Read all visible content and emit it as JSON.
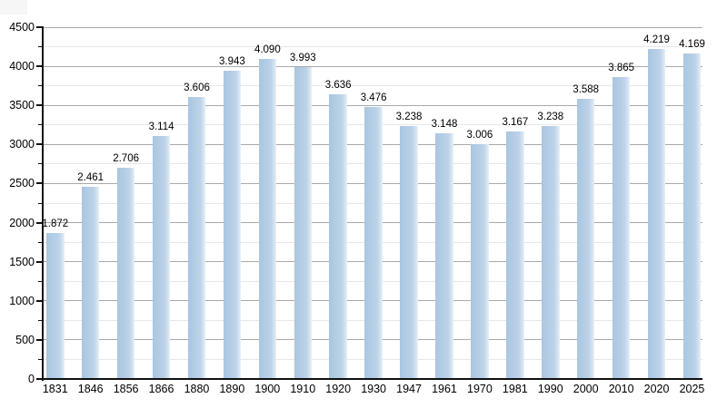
{
  "chart_data": {
    "type": "bar",
    "title": "",
    "xlabel": "",
    "ylabel": "",
    "categories": [
      "1831",
      "1846",
      "1856",
      "1866",
      "1880",
      "1890",
      "1900",
      "1910",
      "1920",
      "1930",
      "1947",
      "1961",
      "1970",
      "1981",
      "1990",
      "2000",
      "2010",
      "2020",
      "2025"
    ],
    "values": [
      1872,
      2461,
      2706,
      3114,
      3606,
      3943,
      4090,
      3993,
      3636,
      3476,
      3238,
      3148,
      3006,
      3167,
      3238,
      3588,
      3865,
      4219,
      4169
    ],
    "value_labels": [
      "1.872",
      "2.461",
      "2.706",
      "3.114",
      "3.606",
      "3.943",
      "4.090",
      "3.993",
      "3.636",
      "3.476",
      "3.238",
      "3.148",
      "3.006",
      "3.167",
      "3.238",
      "3.588",
      "3.865",
      "4.219",
      "4.169"
    ],
    "ylim": [
      0,
      4500
    ],
    "y_tick_labels": [
      "0",
      "500",
      "1000",
      "1500",
      "2000",
      "2500",
      "3000",
      "3500",
      "4000",
      "4500"
    ],
    "y_major_step": 500,
    "y_minor_step": 250,
    "grid": "horizontal major+minor",
    "legend": null,
    "colors": {
      "bar_fill": "#b4cee5",
      "bar_fill_fade": "#e9f1f8",
      "grid_major": "#a9a9a9",
      "grid_minor": "#e7e7e7",
      "axis": "#111111",
      "text": "#000000",
      "background": "#ffffff"
    }
  }
}
